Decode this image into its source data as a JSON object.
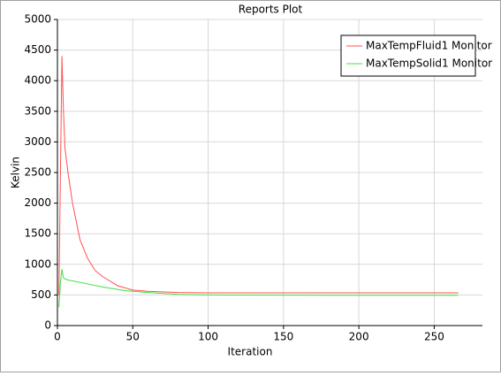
{
  "chart_data": {
    "type": "line",
    "title": "Reports Plot",
    "x_label": "Iteration",
    "y_label": "Kelvin",
    "xlim": [
      0,
      282
    ],
    "xticks": [
      0,
      50,
      100,
      150,
      200,
      250
    ],
    "ylim": [
      0,
      5000
    ],
    "yticks": [
      0,
      500,
      1000,
      1500,
      2000,
      2500,
      3000,
      3500,
      4000,
      4500,
      5000
    ],
    "grid": true,
    "legend": "top-right",
    "series": [
      {
        "name": "MaxTempFluid1 Monitor",
        "color": "#ff5050",
        "x": [
          1,
          2,
          3,
          4,
          5,
          7,
          10,
          15,
          20,
          25,
          30,
          40,
          50,
          60,
          80,
          100,
          150,
          200,
          266
        ],
        "values": [
          500,
          2500,
          4400,
          3500,
          2900,
          2500,
          2000,
          1400,
          1100,
          900,
          800,
          650,
          580,
          560,
          540,
          535,
          535,
          535,
          535
        ]
      },
      {
        "name": "MaxTempSolid1 Monitor",
        "color": "#40e040",
        "x": [
          1,
          2,
          3,
          4,
          6,
          10,
          20,
          30,
          45,
          60,
          80,
          100,
          150,
          200,
          266
        ],
        "values": [
          300,
          700,
          920,
          780,
          750,
          730,
          680,
          630,
          570,
          540,
          510,
          500,
          497,
          495,
          495
        ]
      }
    ]
  }
}
